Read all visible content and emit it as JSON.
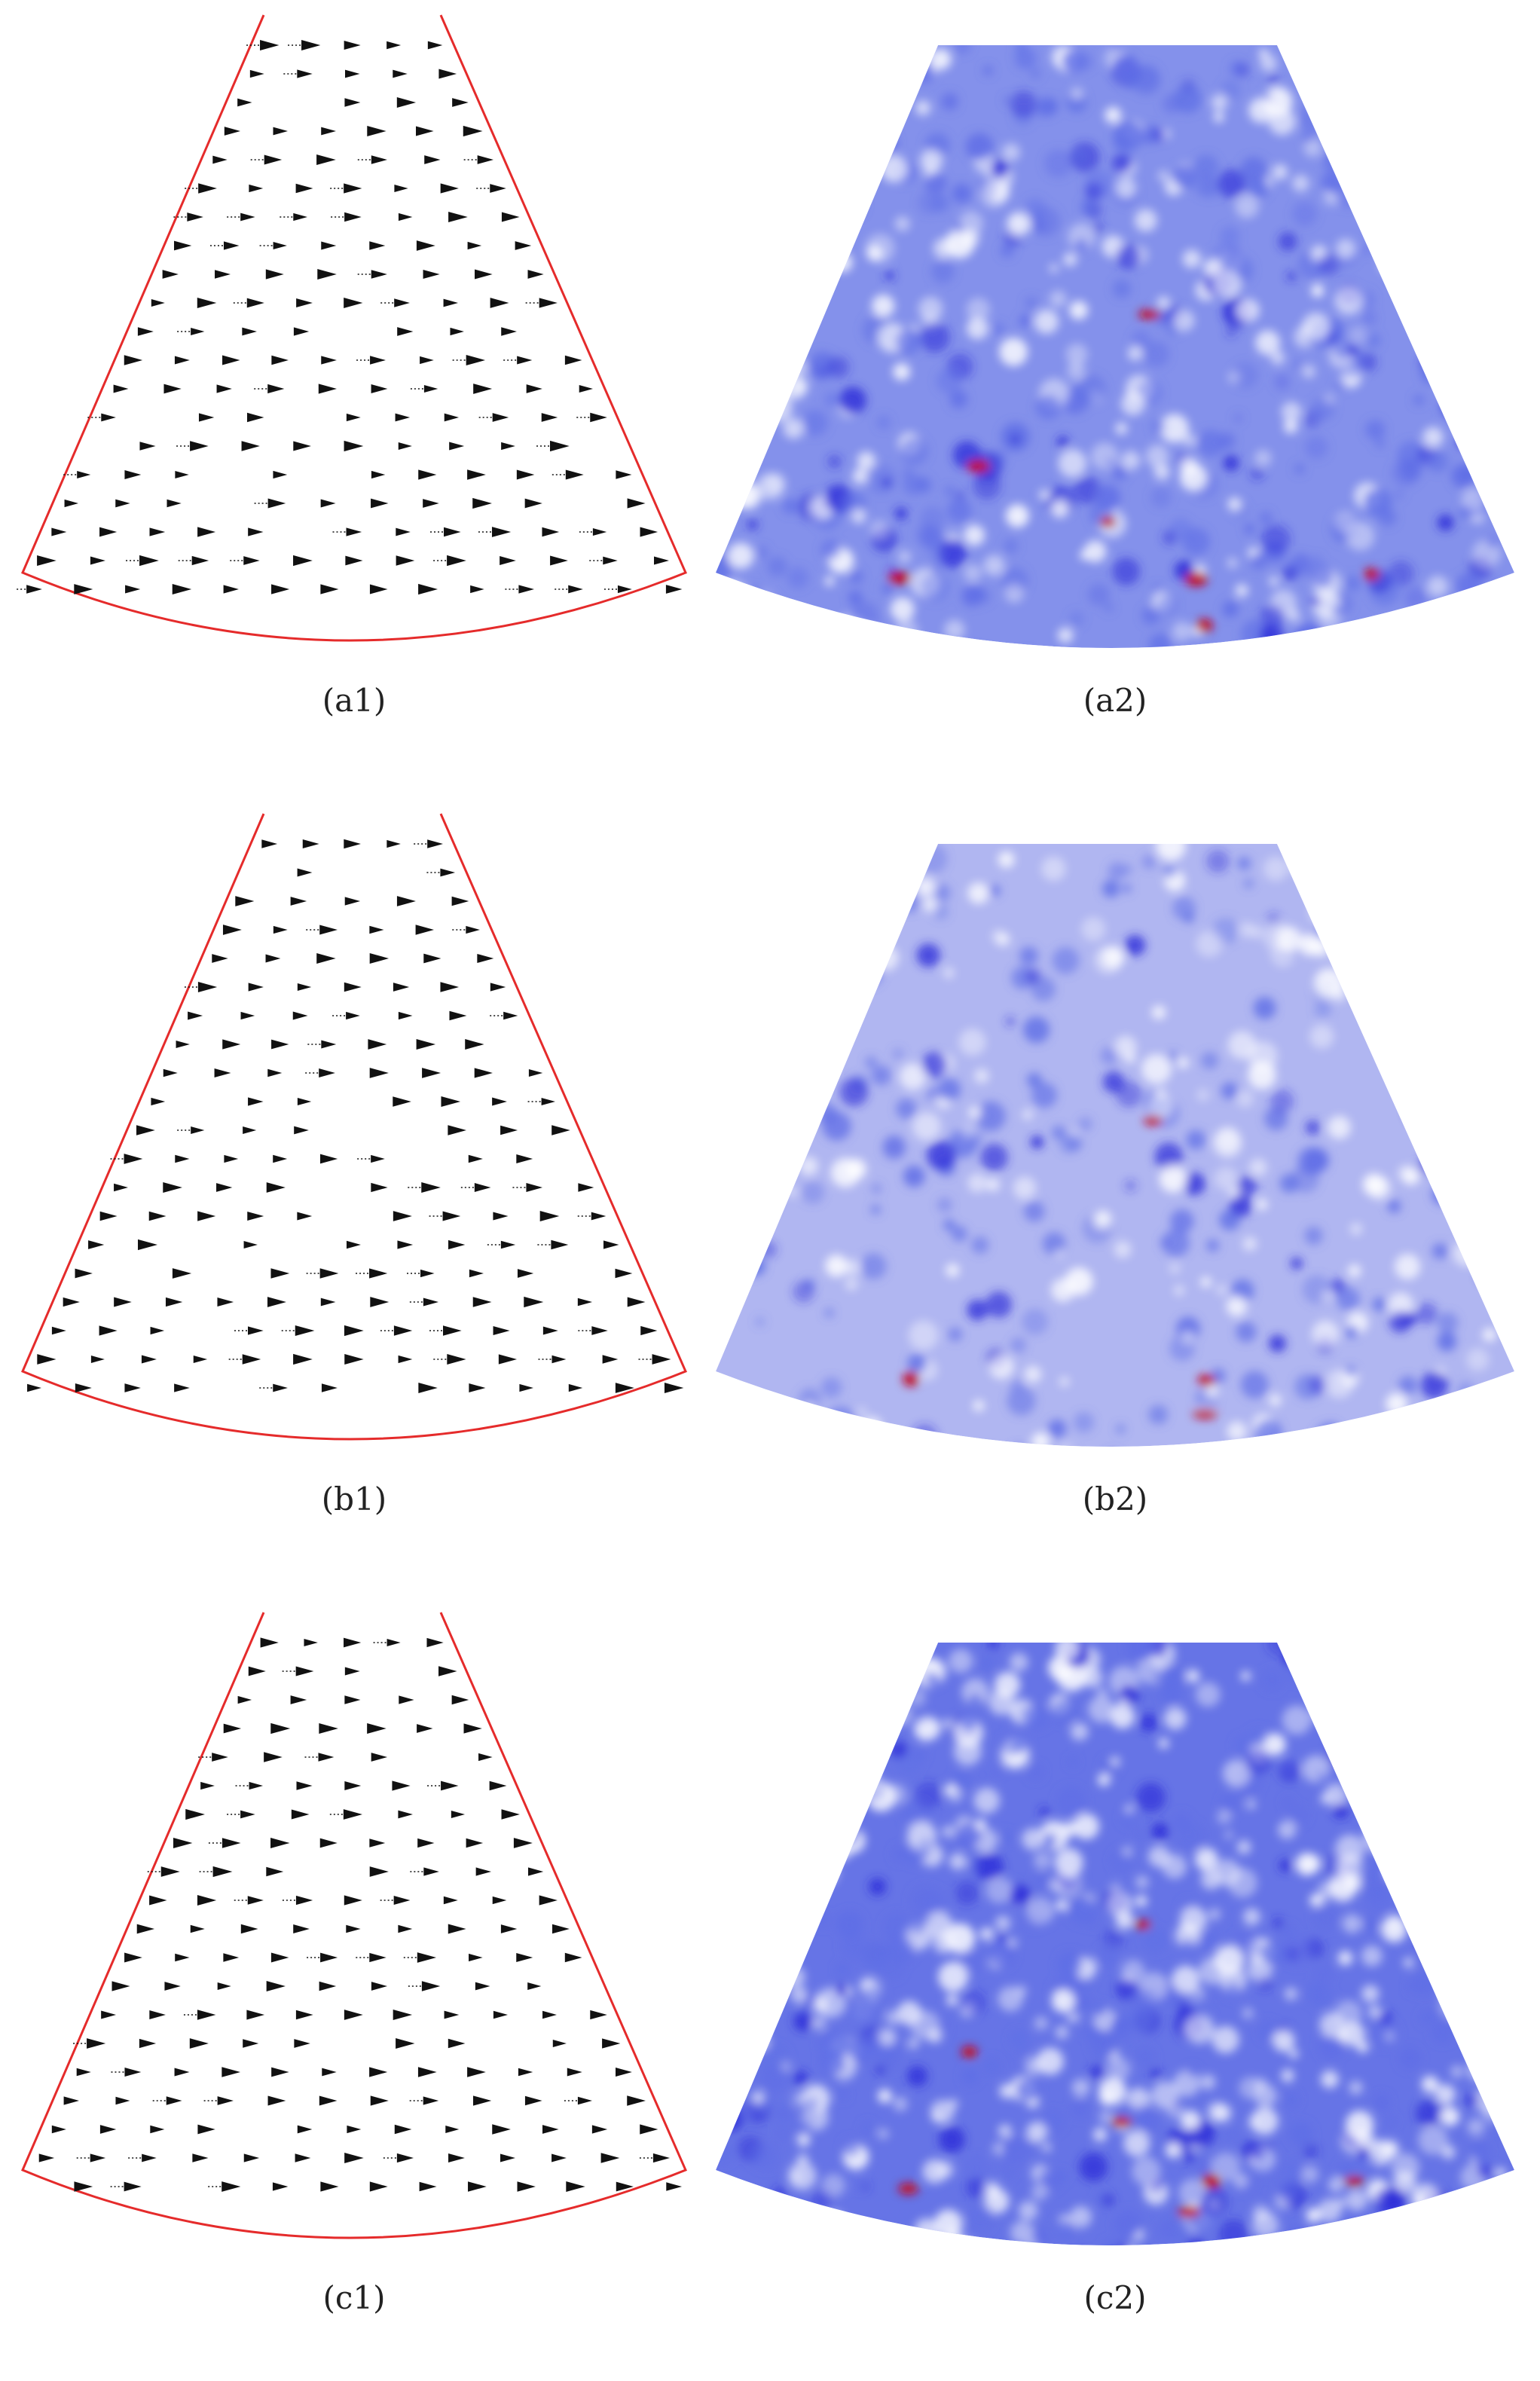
{
  "figure": {
    "rows": [
      {
        "id": "a",
        "left_label": "(a1)",
        "right_label": "(a2)"
      },
      {
        "id": "b",
        "left_label": "(b1)",
        "right_label": "(b2)"
      },
      {
        "id": "c",
        "left_label": "(c1)",
        "right_label": "(c2)"
      }
    ],
    "colors": {
      "boundary": "#e52b2b",
      "arrow": "#111111",
      "map_low": "#ffffff",
      "map_mid": "#5f6ee6",
      "map_high": "#2a2ad8",
      "hotspot": "#c0102c"
    }
  }
}
